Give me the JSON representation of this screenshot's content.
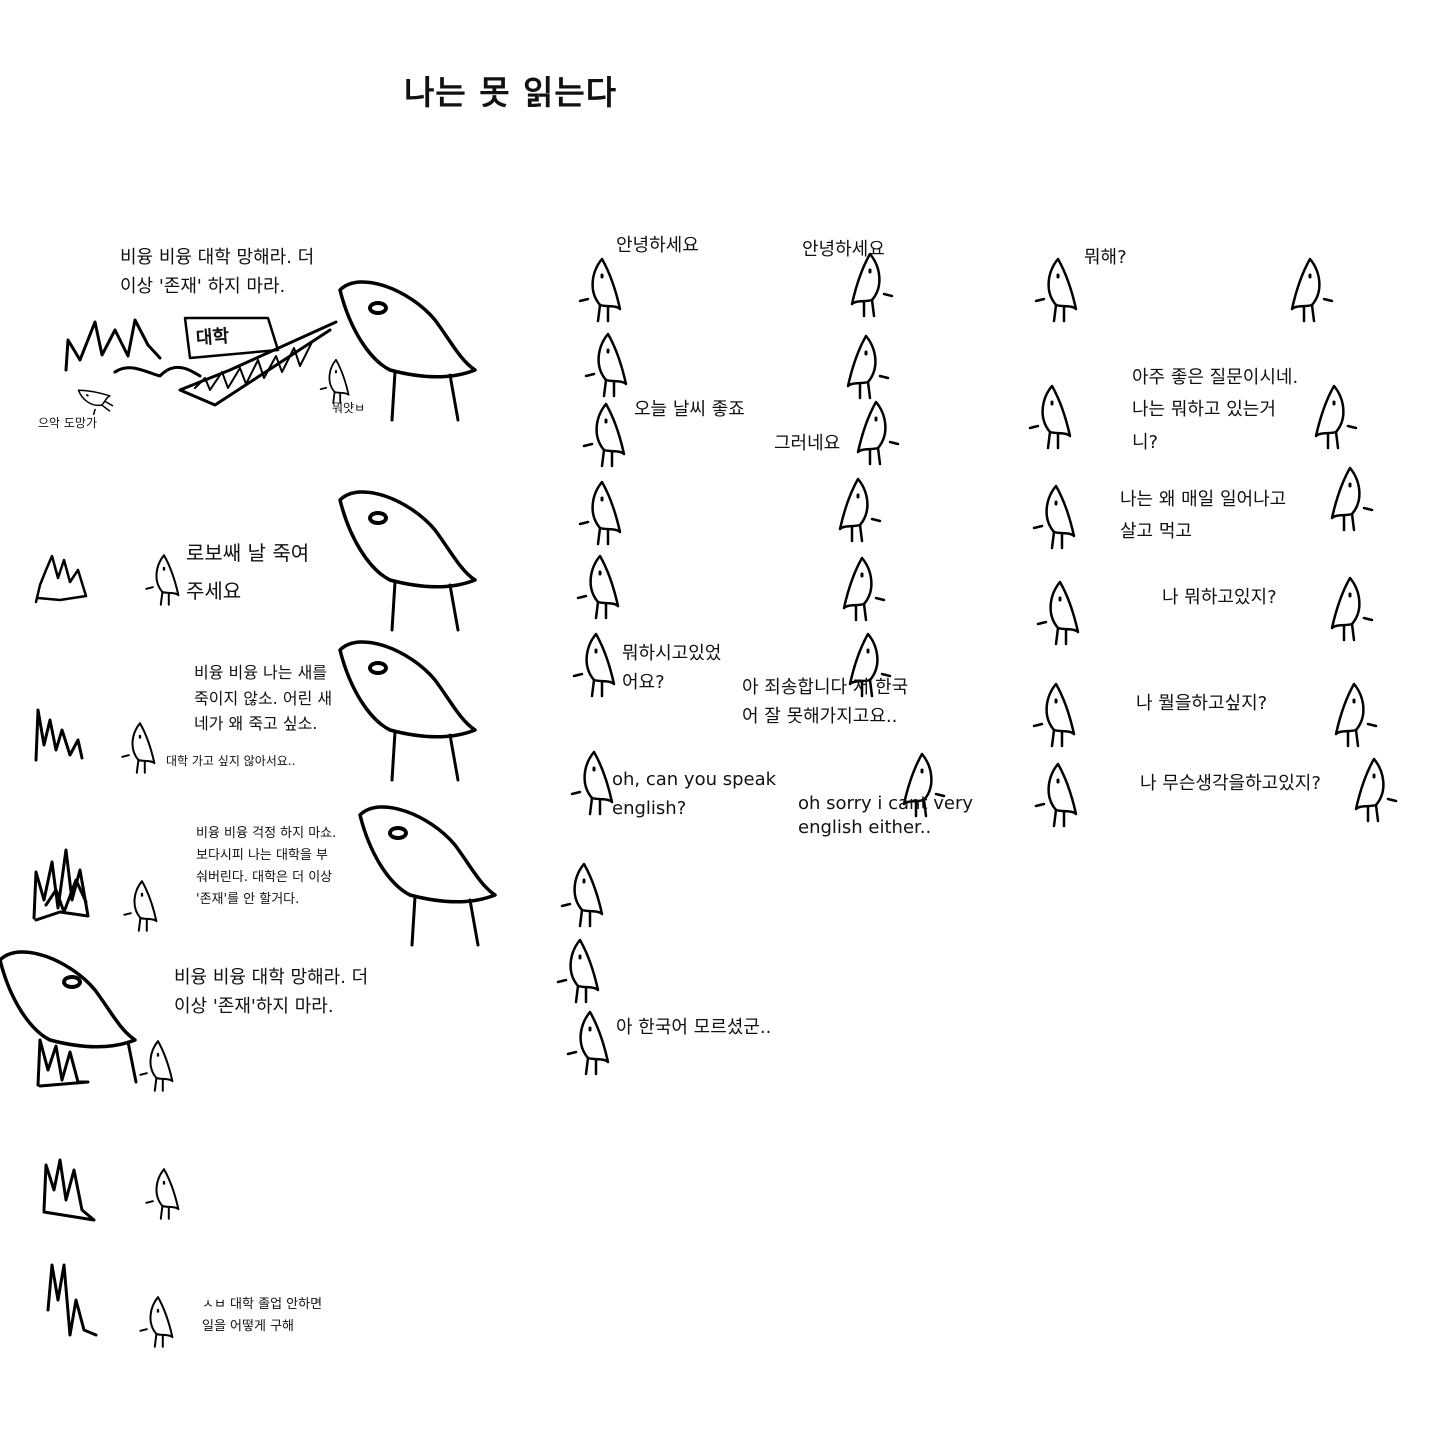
{
  "title": "나는 못 읽는다",
  "left_comic": {
    "scene1_speech": "비융 비융 대학 망해라. 더\n이상 '존재' 하지 마라.",
    "sign_text": "대학",
    "caption_musician": "으악 도망가",
    "caption_small_bird": "뭐얏ㅂ",
    "scene2_speech": "로보쌔 날 죽여\n주세요",
    "scene3_speech": "비융 비융 나는 새를\n죽이지 않소. 어린 새\n네가 왜 죽고 싶소.",
    "scene3_reply": "대학 가고 싶지 않아서요..",
    "scene4_speech": "비융 비융 걱정 하지 마쇼.\n보다시피 나는 대학을 부\n숴버린다. 대학은 더 이상\n'존재'를 안 할거다.",
    "scene5_speech": "비융 비융 대학 망해라. 더\n이상 '존재'하지 마라.",
    "scene7_speech": "ㅅㅂ 대학 졸업 안하면\n일을 어떻게 구해"
  },
  "middle_comic": {
    "greet_left": "안녕하세요",
    "greet_right": "안녕하세요",
    "weather": "오늘 날씨 좋죠",
    "weather_reply": "그러네요",
    "what_doing": "뭐하시고있었\n어요?",
    "sorry_korean": "아 죄송합니다 저 한국\n어 잘 못해가지고요..",
    "english_q": "oh, can you speak\nenglish?",
    "english_a": "oh sorry i cant very\nenglish either..",
    "ending": "아 한국어 모르셨군.."
  },
  "right_comic": {
    "q1": "뭐해?",
    "a1": "아주 좋은 질문이시네.\n나는 뭐하고 있는거\n니?",
    "a2": "나는 왜 매일 일어나고\n살고 먹고",
    "a3": "나 뭐하고있지?",
    "a4": "나 뭘을하고싶지?",
    "a5": "나 무슨생각을하고있지?"
  }
}
